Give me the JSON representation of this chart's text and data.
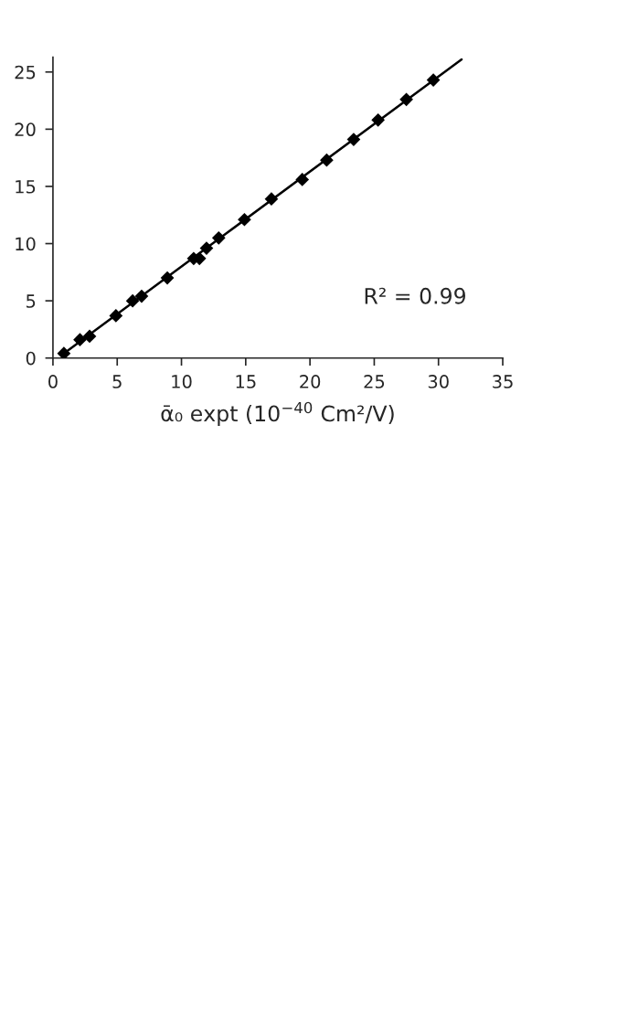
{
  "chart_data": {
    "type": "scatter",
    "xlabel": "ᾱ₀ expt (10$^{−40}$ Cm²/V)",
    "annotations": [
      "R² = 0.99"
    ],
    "xlim": [
      0,
      35
    ],
    "xticks": [
      0,
      5,
      10,
      15,
      20,
      25,
      30,
      35
    ],
    "ylim": [
      0,
      26.3
    ],
    "yticks": [
      0,
      5,
      10,
      15,
      20,
      25
    ],
    "grid": false,
    "series": [
      {
        "color": "#000000",
        "marker": "diamond",
        "x": [
          0.85,
          2.1,
          2.85,
          4.9,
          6.2,
          6.9,
          8.9,
          10.95,
          11.4,
          11.95,
          12.9,
          14.9,
          17.0,
          19.4,
          21.3,
          23.4,
          25.3,
          27.5,
          29.6
        ],
        "values": [
          0.4,
          1.6,
          1.9,
          3.7,
          5.0,
          5.4,
          7.0,
          8.7,
          8.7,
          9.6,
          10.5,
          12.1,
          13.9,
          15.6,
          17.3,
          19.1,
          20.8,
          22.6,
          24.3
        ]
      },
      {
        "type": "line",
        "color": "#000000",
        "line_style": "solid",
        "marker": "none",
        "x": [
          0.85,
          31.8
        ],
        "values": [
          0.4,
          26.1
        ]
      }
    ]
  }
}
